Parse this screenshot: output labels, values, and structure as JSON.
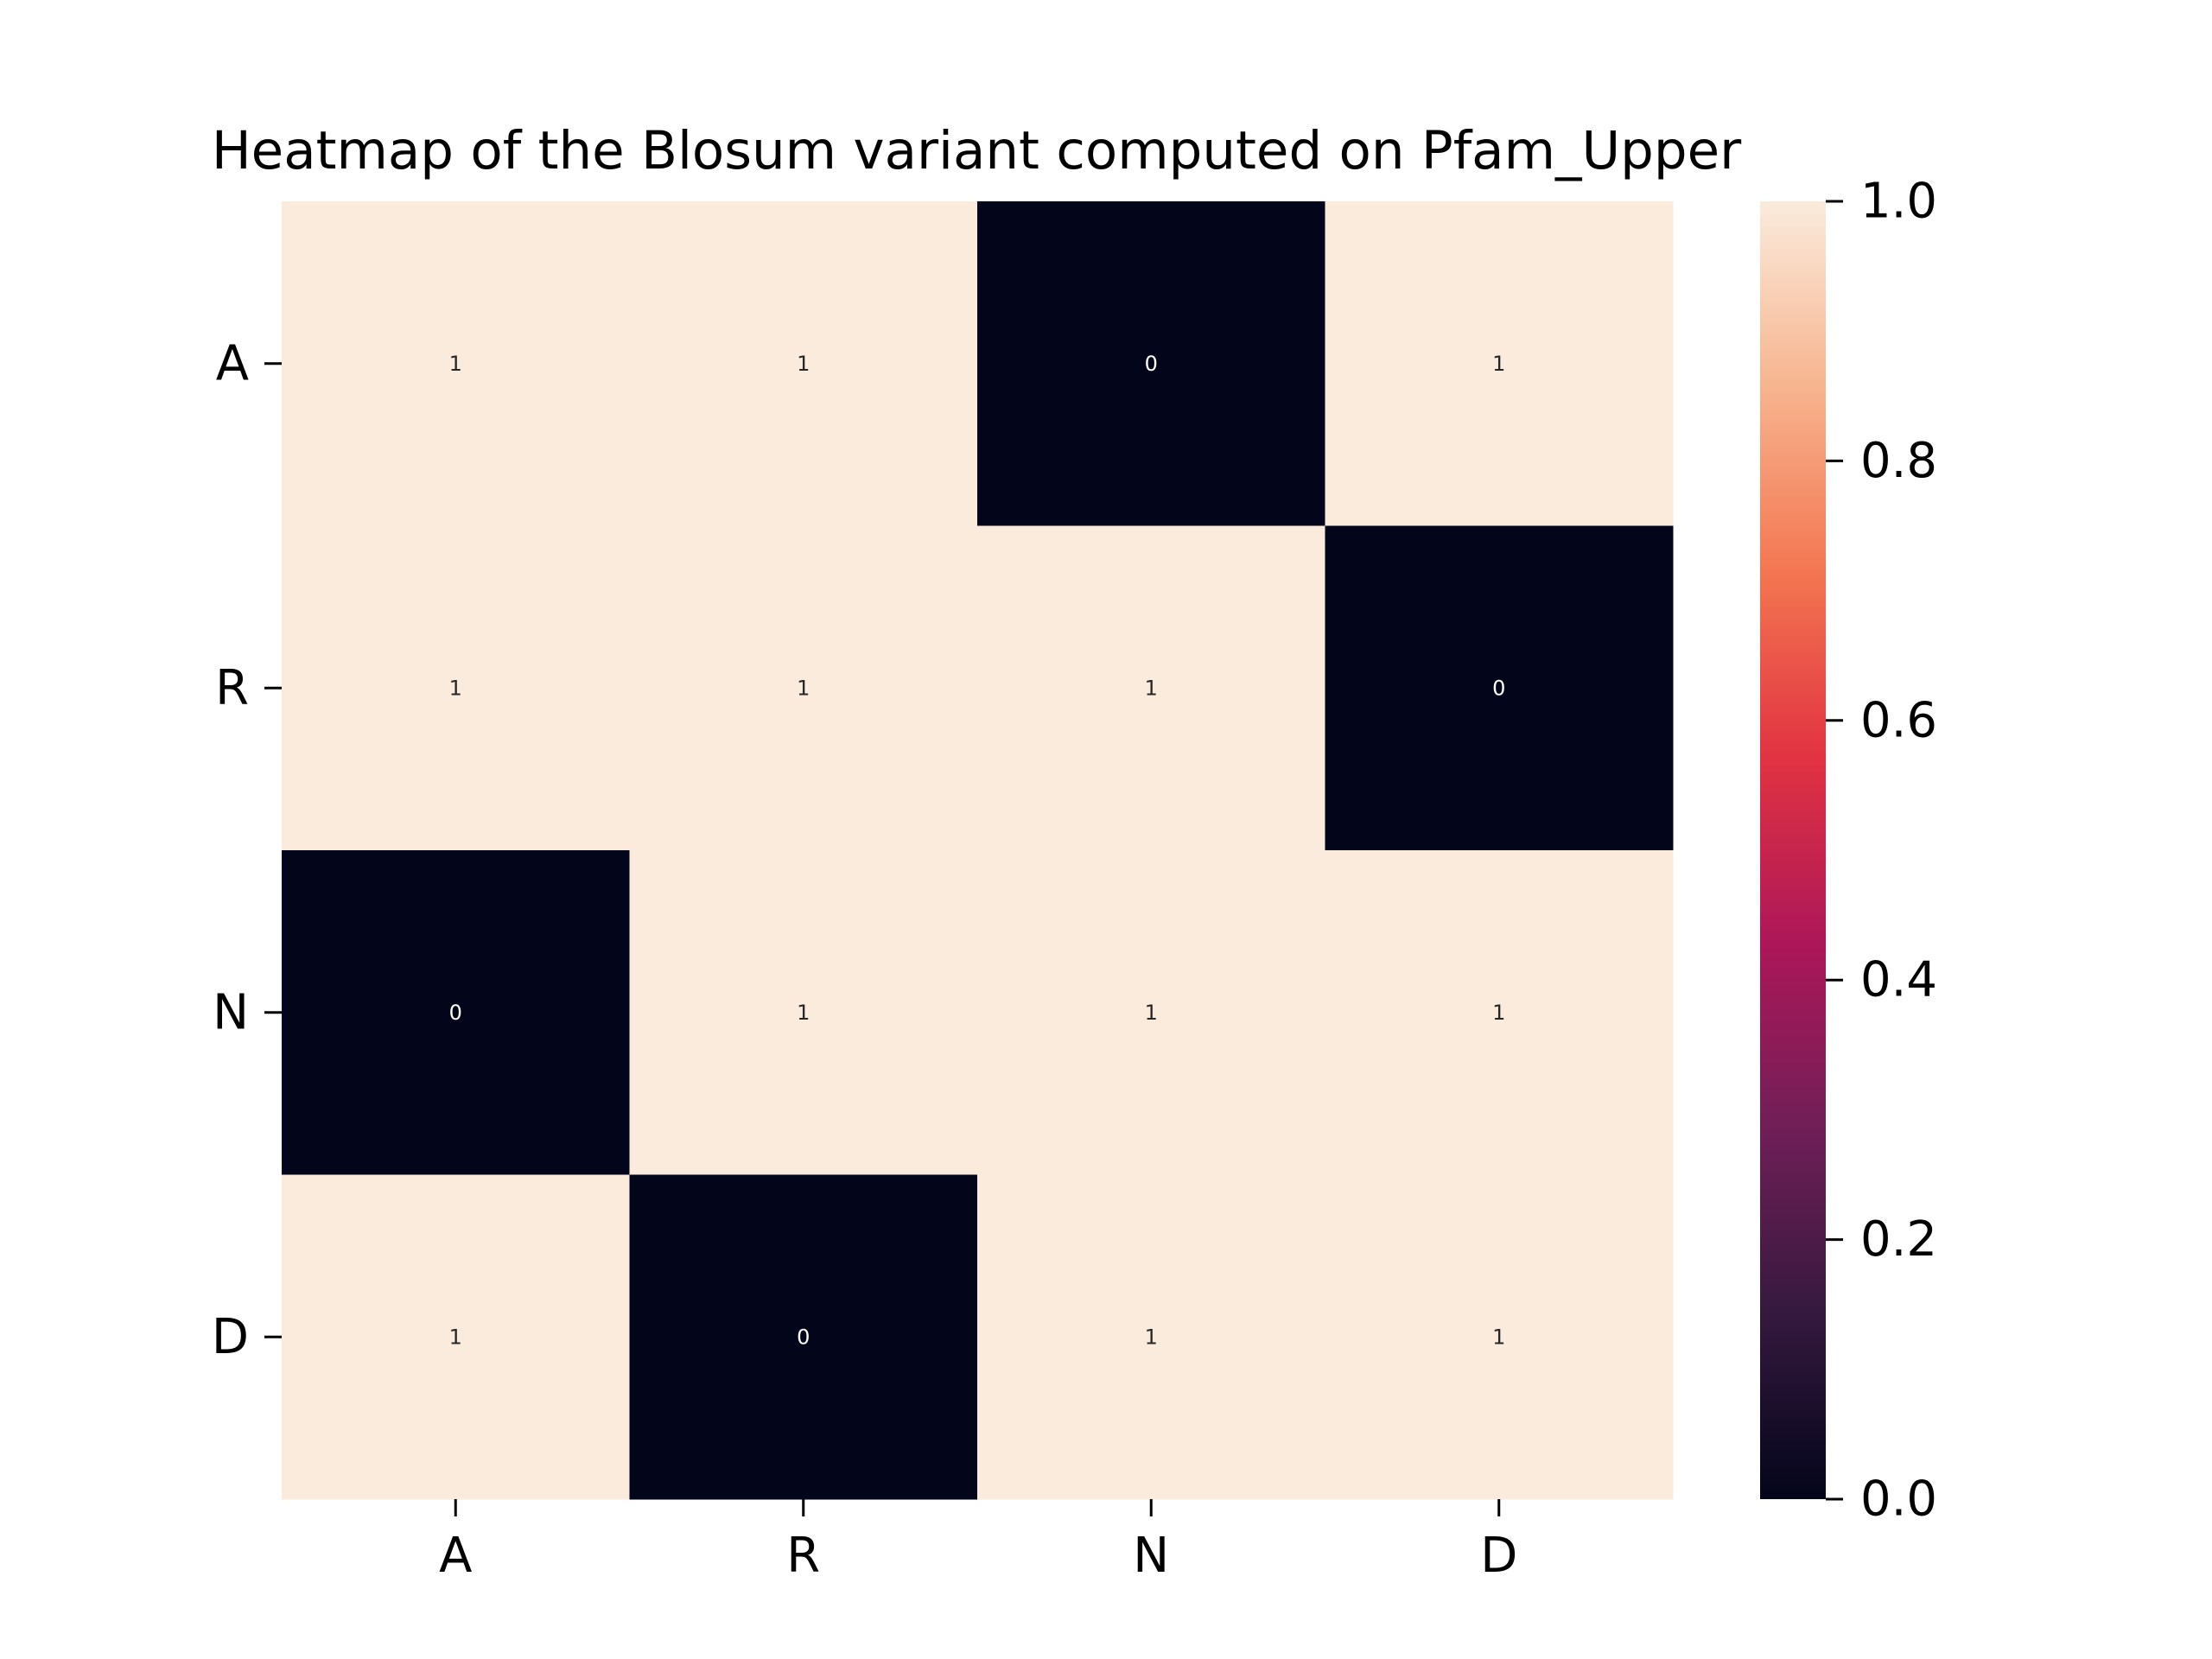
{
  "chart_data": {
    "type": "heatmap",
    "title": "Heatmap of the Blosum variant computed on Pfam_Upper",
    "xlabel": "",
    "ylabel": "",
    "x_categories": [
      "A",
      "R",
      "N",
      "D"
    ],
    "y_categories": [
      "A",
      "R",
      "N",
      "D"
    ],
    "values": [
      [
        1,
        1,
        0,
        1
      ],
      [
        1,
        1,
        1,
        0
      ],
      [
        0,
        1,
        1,
        1
      ],
      [
        1,
        0,
        1,
        1
      ]
    ],
    "annotations": [
      [
        "1",
        "1",
        "0",
        "1"
      ],
      [
        "1",
        "1",
        "1",
        "0"
      ],
      [
        "0",
        "1",
        "1",
        "1"
      ],
      [
        "1",
        "0",
        "1",
        "1"
      ]
    ],
    "colorbar": {
      "range": [
        0.0,
        1.0
      ],
      "ticks": [
        "0.0",
        "0.2",
        "0.4",
        "0.6",
        "0.8",
        "1.0"
      ],
      "colormap": "rocket",
      "stops": [
        "#03051a",
        "#35193e",
        "#701f57",
        "#ad1759",
        "#e13342",
        "#f37651",
        "#f6b48f",
        "#faebdd"
      ]
    },
    "grid": false,
    "legend": "colorbar-right"
  }
}
